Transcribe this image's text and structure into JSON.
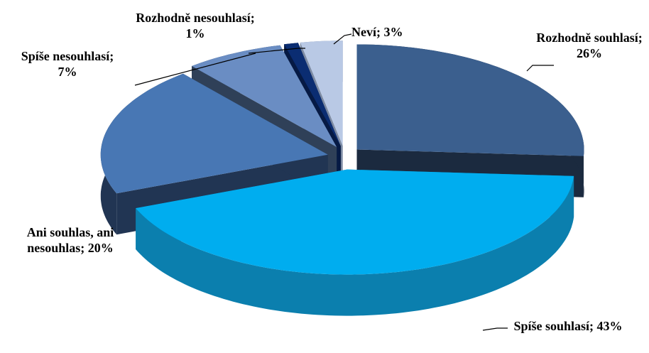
{
  "chart_data": {
    "type": "pie",
    "categories": [
      "Rozhodně souhlasí",
      "Spíše souhlasí",
      "Ani souhlas, ani nesouhlas",
      "Spíše nesouhlasí",
      "Rozhodně nesouhlasí",
      "Neví"
    ],
    "values": [
      26,
      43,
      20,
      7,
      1,
      3
    ],
    "value_labels": [
      "26%",
      "43%",
      "20%",
      "7%",
      "1%",
      "3%"
    ],
    "label_separator": "; ",
    "colors": [
      "#3b5f8e",
      "#00adef",
      "#4877b4",
      "#6a8dc3",
      "#0b2d72",
      "#b9c9e5"
    ],
    "side_colors": [
      "#1b2a3f",
      "#0b7fae",
      "#213553",
      "#2f4058",
      "#061a44",
      "#7d8ba3"
    ]
  }
}
